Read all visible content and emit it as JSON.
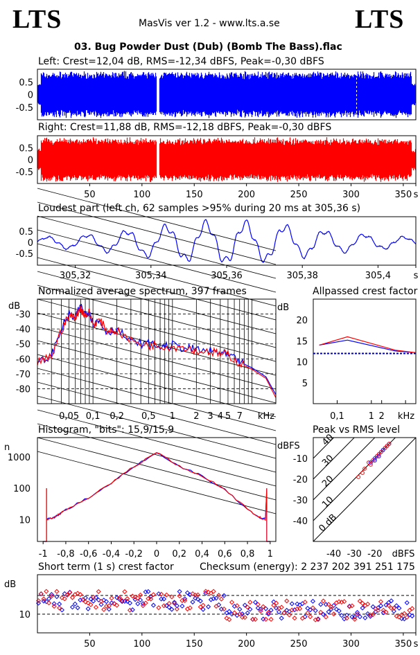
{
  "header": {
    "logo_left": "LTS",
    "logo_right": "LTS",
    "app_title": "MasVis ver 1.2 - www.lts.a.se",
    "file_title": "03. Bug Powder Dust (Dub) (Bomb The Bass).flac"
  },
  "colors": {
    "left": "#0000ff",
    "right": "#ff0000",
    "frame": "#000000"
  },
  "chart_data": [
    {
      "type": "area",
      "id": "left-waveform",
      "title": "Left: Crest=12,04 dB, RMS=-12,34 dBFS, Peak=-0,30 dBFS",
      "yticks": [
        "0.5",
        "0",
        "-0.5"
      ],
      "ylim": [
        -1,
        1
      ],
      "xlim": [
        0,
        362
      ],
      "gap_at_s": 115,
      "marker_at_s": 305.36
    },
    {
      "type": "area",
      "id": "right-waveform",
      "title": "Right: Crest=11,88 dB, RMS=-12,18 dBFS, Peak=-0,30 dBFS",
      "yticks": [
        "0.5",
        "0",
        "-0.5"
      ],
      "ylim": [
        -1,
        1
      ],
      "xlim": [
        0,
        362
      ],
      "xticks": [
        "50",
        "100",
        "150",
        "200",
        "250",
        "300",
        "350",
        "s"
      ],
      "gap_at_s": 115
    },
    {
      "type": "line",
      "id": "loudest-part",
      "title": "Loudest part (left  ch, 62 samples >95% during 20 ms at 305,36 s)",
      "yticks": [
        "0.5",
        "0",
        "-0.5"
      ],
      "xticks": [
        "305,32",
        "305,34",
        "305,36",
        "305,38",
        "305,4",
        "s"
      ],
      "xlim": [
        305.31,
        305.41
      ]
    },
    {
      "type": "line",
      "id": "spectrum",
      "title": "Normalized average spectrum, 397 frames",
      "ylabel": "dB",
      "yticks": [
        "-30",
        "-40",
        "-50",
        "-60",
        "-70",
        "-80"
      ],
      "xticks": [
        "0,05",
        "0,1",
        "0,2",
        "0,5",
        "1",
        "2",
        "3",
        "4",
        "5",
        "7",
        "kHz"
      ],
      "ylim": [
        -90,
        -20
      ],
      "xlim_khz": [
        0.02,
        20
      ],
      "series": [
        {
          "x": [
            0.02,
            0.03,
            0.04,
            0.05,
            0.06,
            0.07,
            0.08,
            0.09,
            0.1,
            0.12,
            0.15,
            0.2,
            0.3,
            0.5,
            0.7,
            1,
            1.5,
            2,
            3,
            4,
            5,
            7,
            10,
            15,
            20
          ],
          "y": [
            -63,
            -58,
            -40,
            -30,
            -33,
            -25,
            -30,
            -28,
            -36,
            -35,
            -42,
            -40,
            -49,
            -50,
            -52,
            -51,
            -53,
            -54,
            -55,
            -56,
            -58,
            -62,
            -66,
            -72,
            -84
          ]
        },
        {
          "x": [
            0.02,
            0.03,
            0.04,
            0.05,
            0.06,
            0.07,
            0.08,
            0.09,
            0.1,
            0.12,
            0.15,
            0.2,
            0.3,
            0.5,
            0.7,
            1,
            1.5,
            2,
            3,
            4,
            5,
            7,
            10,
            15,
            20
          ],
          "y": [
            -63,
            -58,
            -41,
            -31,
            -32,
            -26,
            -31,
            -29,
            -37,
            -34,
            -41,
            -41,
            -48,
            -51,
            -51,
            -52,
            -52,
            -55,
            -55,
            -57,
            -57,
            -63,
            -67,
            -73,
            -86
          ]
        }
      ]
    },
    {
      "type": "line",
      "id": "allpassed-crest",
      "title": "Allpassed crest factor",
      "ylabel": "dB",
      "yticks": [
        "20",
        "15",
        "10",
        "5"
      ],
      "xticks": [
        "0,1",
        "1",
        "2",
        "kHz"
      ],
      "ylim": [
        0,
        25
      ],
      "reference_db": 12,
      "series": [
        {
          "x": [
            0.03,
            0.2,
            5,
            20
          ],
          "y": [
            14,
            15.2,
            12.6,
            12.2
          ]
        },
        {
          "x": [
            0.03,
            0.2,
            5,
            20
          ],
          "y": [
            14,
            16.0,
            12.8,
            12.2
          ]
        }
      ]
    },
    {
      "type": "line",
      "id": "histogram",
      "title": "Histogram, \"bits\": 15,9/15,9",
      "ylabel": "n",
      "yticks": [
        "1000",
        "100",
        "10"
      ],
      "xticks": [
        "-1",
        "-0,8",
        "-0,6",
        "-0,4",
        "-0,2",
        "0",
        "0,2",
        "0,4",
        "0,6",
        "0,8",
        "1"
      ],
      "xlim": [
        -1.05,
        1.05
      ],
      "series": [
        {
          "x": [
            -0.97,
            -0.9,
            -0.8,
            -0.6,
            -0.4,
            -0.2,
            0,
            0.2,
            0.4,
            0.6,
            0.8,
            0.9,
            0.97
          ],
          "y": [
            10,
            12,
            20,
            50,
            150,
            500,
            1400,
            500,
            250,
            90,
            22,
            12,
            10
          ]
        }
      ]
    },
    {
      "type": "scatter",
      "id": "peak-vs-rms",
      "title": "Peak vs RMS level",
      "ylabel": "dBFS",
      "xlabel": "dBFS",
      "yticks": [
        "-10",
        "-20",
        "-30",
        "-40"
      ],
      "xticks": [
        "-40",
        "-30",
        "-20"
      ],
      "diagonal_labels": [
        "40",
        "30",
        "20",
        "10",
        "0 dB"
      ],
      "series": [
        {
          "name": "",
          "x": [
            -22,
            -20,
            -19,
            -18,
            -17,
            -16,
            -15,
            -14,
            -13,
            -20,
            -18,
            -16
          ],
          "y": [
            -12,
            -10,
            -9,
            -8,
            -7,
            -6,
            -5,
            -4,
            -3,
            -11,
            -9,
            -6
          ]
        },
        {
          "name": "",
          "x": [
            -28,
            -25,
            -22,
            -21,
            -19,
            -18,
            -17,
            -15,
            -14,
            -13,
            -26,
            -23
          ],
          "y": [
            -19,
            -15,
            -13,
            -11,
            -9,
            -8,
            -7,
            -5,
            -4,
            -3,
            -17,
            -12
          ]
        }
      ]
    },
    {
      "type": "scatter",
      "id": "short-term-crest",
      "title": "Short term (1 s) crest factor",
      "checksum": "Checksum (energy):  2 237 202 391 251 175",
      "ylabel": "dB",
      "yticks": [
        "10"
      ],
      "xticks": [
        "50",
        "100",
        "150",
        "200",
        "250",
        "300",
        "350",
        "s"
      ],
      "xlim": [
        0,
        362
      ]
    }
  ]
}
